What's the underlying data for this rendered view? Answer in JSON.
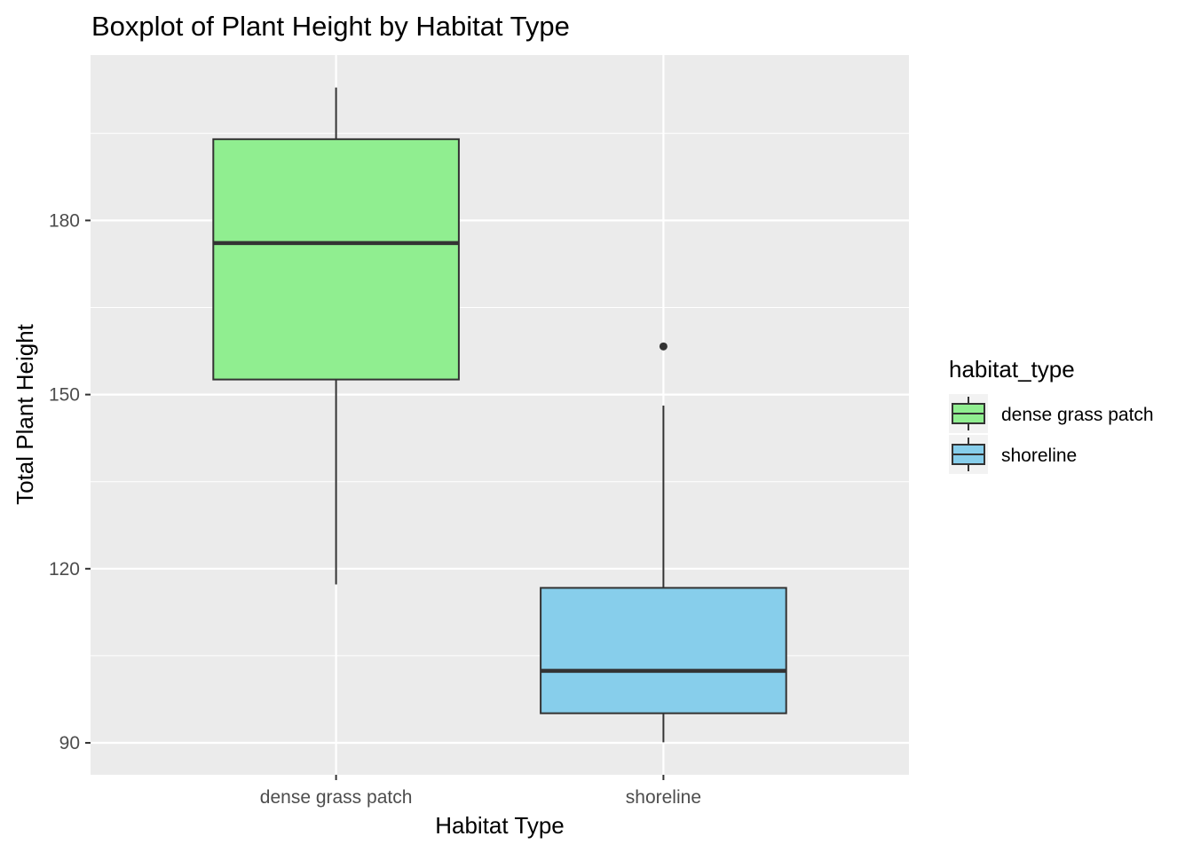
{
  "chart_data": {
    "type": "boxplot",
    "title": "Boxplot of Plant Height by Habitat Type",
    "xlabel": "Habitat Type",
    "ylabel": "Total Plant Height",
    "categories": [
      "dense grass patch",
      "shoreline"
    ],
    "y_ticks": [
      "90",
      "120",
      "150",
      "180"
    ],
    "ylim": [
      84.5,
      208.5
    ],
    "grid": true,
    "legend": {
      "title": "habitat_type",
      "position": "right",
      "entries": [
        "dense grass patch",
        "shoreline"
      ]
    },
    "series": [
      {
        "category": "dense grass patch",
        "color": "#90EE90",
        "whisker_low": 117.3,
        "q1": 152.6,
        "median": 176.1,
        "q3": 194.0,
        "whisker_high": 202.9,
        "outliers": []
      },
      {
        "category": "shoreline",
        "color": "#87CEEB",
        "whisker_low": 90.1,
        "q1": 95.1,
        "median": 102.4,
        "q3": 116.7,
        "whisker_high": 148.1,
        "outliers": [
          158.3
        ]
      }
    ]
  }
}
